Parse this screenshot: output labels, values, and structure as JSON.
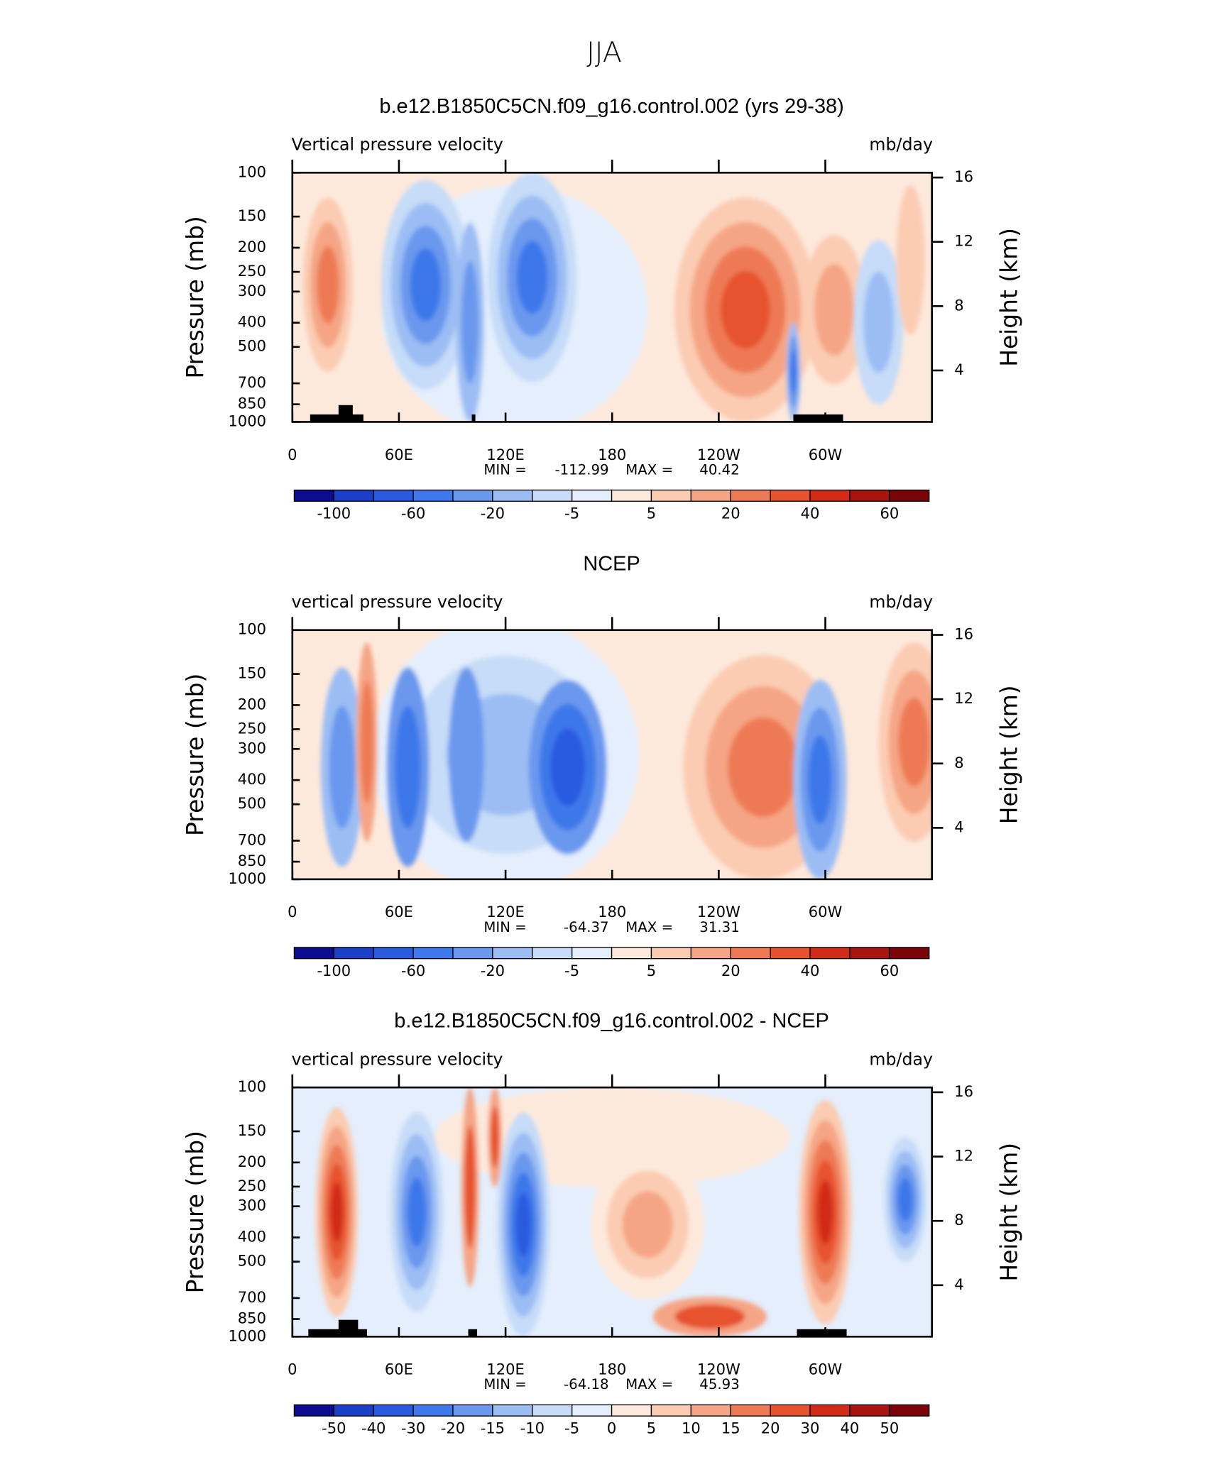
{
  "title": "JJA",
  "chart_data": [
    {
      "type": "contour",
      "title": "b.e12.B1850C5CN.f09_g16.control.002 (yrs 29-38)",
      "subtitle": "Vertical pressure velocity",
      "units": "mb/day",
      "xlim": [
        0,
        360
      ],
      "xticks": [
        0,
        {
          "value": 60,
          "label": "60E"
        },
        {
          "value": 120,
          "label": "120E"
        },
        180,
        {
          "value": 240,
          "label": "120W"
        },
        {
          "value": 300,
          "label": "60W"
        }
      ],
      "ylim": [
        1000,
        100
      ],
      "ylog": true,
      "yticks": [
        100,
        150,
        200,
        250,
        300,
        400,
        500,
        700,
        850,
        1000
      ],
      "ylabel": "Pressure (mb)",
      "y2lim": [
        0.8,
        16.3
      ],
      "y2ticks": [
        4,
        8,
        12,
        16
      ],
      "y2label": "Height (km)",
      "min_label": "MIN =",
      "min": -112.99,
      "max_label": "MAX =",
      "max": 40.42,
      "colorbar": {
        "colors": [
          "#0c0c90",
          "#1c3fc8",
          "#2a5ae0",
          "#3e78ea",
          "#6a98ee",
          "#9bbdf4",
          "#c6dcf8",
          "#e4eefc",
          "#fde9dc",
          "#fbccb2",
          "#f5a585",
          "#ee7a55",
          "#e6522e",
          "#d12c18",
          "#a8150e",
          "#7a0508"
        ],
        "labels": [
          -100,
          -60,
          -20,
          -5,
          5,
          20,
          40,
          60
        ]
      }
    },
    {
      "type": "contour",
      "title": "NCEP",
      "subtitle": "vertical pressure velocity",
      "units": "mb/day",
      "xlim": [
        0,
        360
      ],
      "xticks": [
        0,
        {
          "value": 60,
          "label": "60E"
        },
        {
          "value": 120,
          "label": "120E"
        },
        180,
        {
          "value": 240,
          "label": "120W"
        },
        {
          "value": 300,
          "label": "60W"
        }
      ],
      "ylim": [
        1000,
        100
      ],
      "ylog": true,
      "yticks": [
        100,
        150,
        200,
        250,
        300,
        400,
        500,
        700,
        850,
        1000
      ],
      "ylabel": "Pressure (mb)",
      "y2lim": [
        0.8,
        16.3
      ],
      "y2ticks": [
        4,
        8,
        12,
        16
      ],
      "y2label": "Height (km)",
      "min_label": "MIN =",
      "min": -64.37,
      "max_label": "MAX =",
      "max": 31.31,
      "colorbar": {
        "colors": [
          "#0c0c90",
          "#1c3fc8",
          "#2a5ae0",
          "#3e78ea",
          "#6a98ee",
          "#9bbdf4",
          "#c6dcf8",
          "#e4eefc",
          "#fde9dc",
          "#fbccb2",
          "#f5a585",
          "#ee7a55",
          "#e6522e",
          "#d12c18",
          "#a8150e",
          "#7a0508"
        ],
        "labels": [
          -100,
          -60,
          -20,
          -5,
          5,
          20,
          40,
          60
        ]
      }
    },
    {
      "type": "contour",
      "title": "b.e12.B1850C5CN.f09_g16.control.002 - NCEP",
      "subtitle": "vertical pressure velocity",
      "units": "mb/day",
      "xlim": [
        0,
        360
      ],
      "xticks": [
        0,
        {
          "value": 60,
          "label": "60E"
        },
        {
          "value": 120,
          "label": "120E"
        },
        180,
        {
          "value": 240,
          "label": "120W"
        },
        {
          "value": 300,
          "label": "60W"
        }
      ],
      "ylim": [
        1000,
        100
      ],
      "ylog": true,
      "yticks": [
        100,
        150,
        200,
        250,
        300,
        400,
        500,
        700,
        850,
        1000
      ],
      "ylabel": "Pressure (mb)",
      "y2lim": [
        0.8,
        16.3
      ],
      "y2ticks": [
        4,
        8,
        12,
        16
      ],
      "y2label": "Height (km)",
      "min_label": "MIN =",
      "min": -64.18,
      "max_label": "MAX =",
      "max": 45.93,
      "colorbar": {
        "colors": [
          "#0c0c90",
          "#1c3fc8",
          "#2a5ae0",
          "#3e78ea",
          "#6a98ee",
          "#9bbdf4",
          "#c6dcf8",
          "#e4eefc",
          "#fde9dc",
          "#fbccb2",
          "#f5a585",
          "#ee7a55",
          "#e6522e",
          "#d12c18",
          "#a8150e",
          "#7a0508"
        ],
        "labels": [
          -50,
          -40,
          -30,
          -20,
          -15,
          -10,
          -5,
          0,
          5,
          10,
          15,
          20,
          30,
          40,
          50
        ]
      }
    }
  ]
}
